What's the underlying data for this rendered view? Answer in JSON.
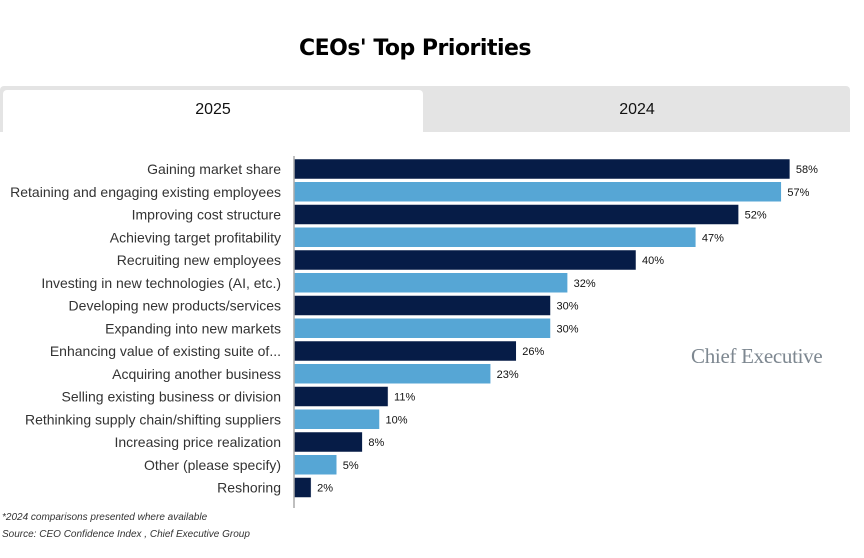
{
  "title": "CEOs' Top Priorities",
  "tabs": [
    {
      "label": "2025",
      "active": true
    },
    {
      "label": "2024",
      "active": false
    }
  ],
  "logo": "Chief Executive",
  "footnotes": [
    "*2024 comparisons presented where available",
    "Source: CEO Confidence Index , Chief Executive Group"
  ],
  "colors": {
    "dark": "#061c47",
    "light": "#56a6d5",
    "axis": "#aaaaaa"
  },
  "chart_data": {
    "type": "bar",
    "orientation": "horizontal",
    "title": "CEOs' Top Priorities",
    "xlabel": "",
    "ylabel": "",
    "value_suffix": "%",
    "xlim": [
      0,
      60
    ],
    "grid": false,
    "categories": [
      "Gaining market share",
      "Retaining and engaging existing employees",
      "Improving cost structure",
      "Achieving target profitability",
      "Recruiting new employees",
      "Investing in new technologies (AI, etc.)",
      "Developing new products/services",
      "Expanding into new markets",
      "Enhancing value of existing suite of...",
      "Acquiring another business",
      "Selling existing business or division",
      "Rethinking supply chain/shifting suppliers",
      "Increasing price realization",
      "Other (please specify)",
      "Reshoring"
    ],
    "values": [
      58,
      57,
      52,
      47,
      40,
      32,
      30,
      30,
      26,
      23,
      11,
      10,
      8,
      5,
      2
    ],
    "series": [
      {
        "name": "2025",
        "values": [
          58,
          57,
          52,
          47,
          40,
          32,
          30,
          30,
          26,
          23,
          11,
          10,
          8,
          5,
          2
        ]
      }
    ]
  }
}
